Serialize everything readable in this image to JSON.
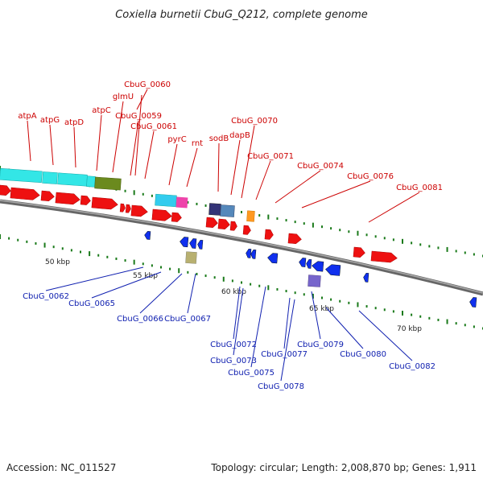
{
  "title": "Coxiella burnetii CbuG_Q212, complete genome",
  "footer": {
    "accession": "Accession: NC_011527",
    "topology": "Topology: circular; Length: 2,008,870 bp; Genes: 1,911"
  },
  "colors": {
    "forward_label": "#cc0000",
    "reverse_label": "#1020b0",
    "forward_gene": "#ee1111",
    "reverse_gene": "#1030ee",
    "backbone": "#888888",
    "tick": "#1a7a1a"
  },
  "kbp_labels": [
    "50 kbp",
    "55 kbp",
    "60 kbp",
    "65 kbp",
    "70 kbp"
  ],
  "forward_labels": [
    "atpA",
    "atpG",
    "atpD",
    "atpC",
    "glmU",
    "CbuG_0060",
    "CbuG_0059",
    "CbuG_0061",
    "pyrC",
    "rnt",
    "sodB",
    "dapB",
    "CbuG_0070",
    "CbuG_0071",
    "CbuG_0074",
    "CbuG_0076",
    "CbuG_0081"
  ],
  "reverse_labels": [
    "CbuG_0062",
    "CbuG_0065",
    "CbuG_0066",
    "CbuG_0067",
    "CbuG_0072",
    "CbuG_0073",
    "CbuG_0075",
    "CbuG_0077",
    "CbuG_0078",
    "CbuG_0079",
    "CbuG_0080",
    "CbuG_0082"
  ]
}
